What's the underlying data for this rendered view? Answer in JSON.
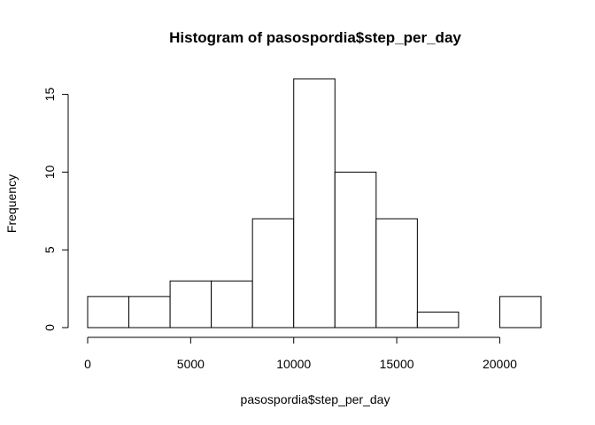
{
  "chart_data": {
    "type": "bar",
    "title": "Histogram of pasospordia$step_per_day",
    "xlabel": "pasospordia$step_per_day",
    "ylabel": "Frequency",
    "bins": [
      {
        "start": 0,
        "end": 2000,
        "count": 2
      },
      {
        "start": 2000,
        "end": 4000,
        "count": 2
      },
      {
        "start": 4000,
        "end": 6000,
        "count": 3
      },
      {
        "start": 6000,
        "end": 8000,
        "count": 3
      },
      {
        "start": 8000,
        "end": 10000,
        "count": 7
      },
      {
        "start": 10000,
        "end": 12000,
        "count": 16
      },
      {
        "start": 12000,
        "end": 14000,
        "count": 10
      },
      {
        "start": 14000,
        "end": 16000,
        "count": 7
      },
      {
        "start": 16000,
        "end": 18000,
        "count": 1
      },
      {
        "start": 18000,
        "end": 20000,
        "count": 0
      },
      {
        "start": 20000,
        "end": 22000,
        "count": 2
      }
    ],
    "xticks": [
      "0",
      "5000",
      "10000",
      "15000",
      "20000"
    ],
    "xtick_values": [
      0,
      5000,
      10000,
      15000,
      20000
    ],
    "yticks": [
      "0",
      "5",
      "10",
      "15"
    ],
    "ytick_values": [
      0,
      5,
      10,
      15
    ],
    "xlim": [
      0,
      22000
    ],
    "ylim": [
      0,
      16
    ],
    "grid": false,
    "legend": "none",
    "bar_fill": "#ffffff",
    "bar_stroke": "#000000"
  }
}
